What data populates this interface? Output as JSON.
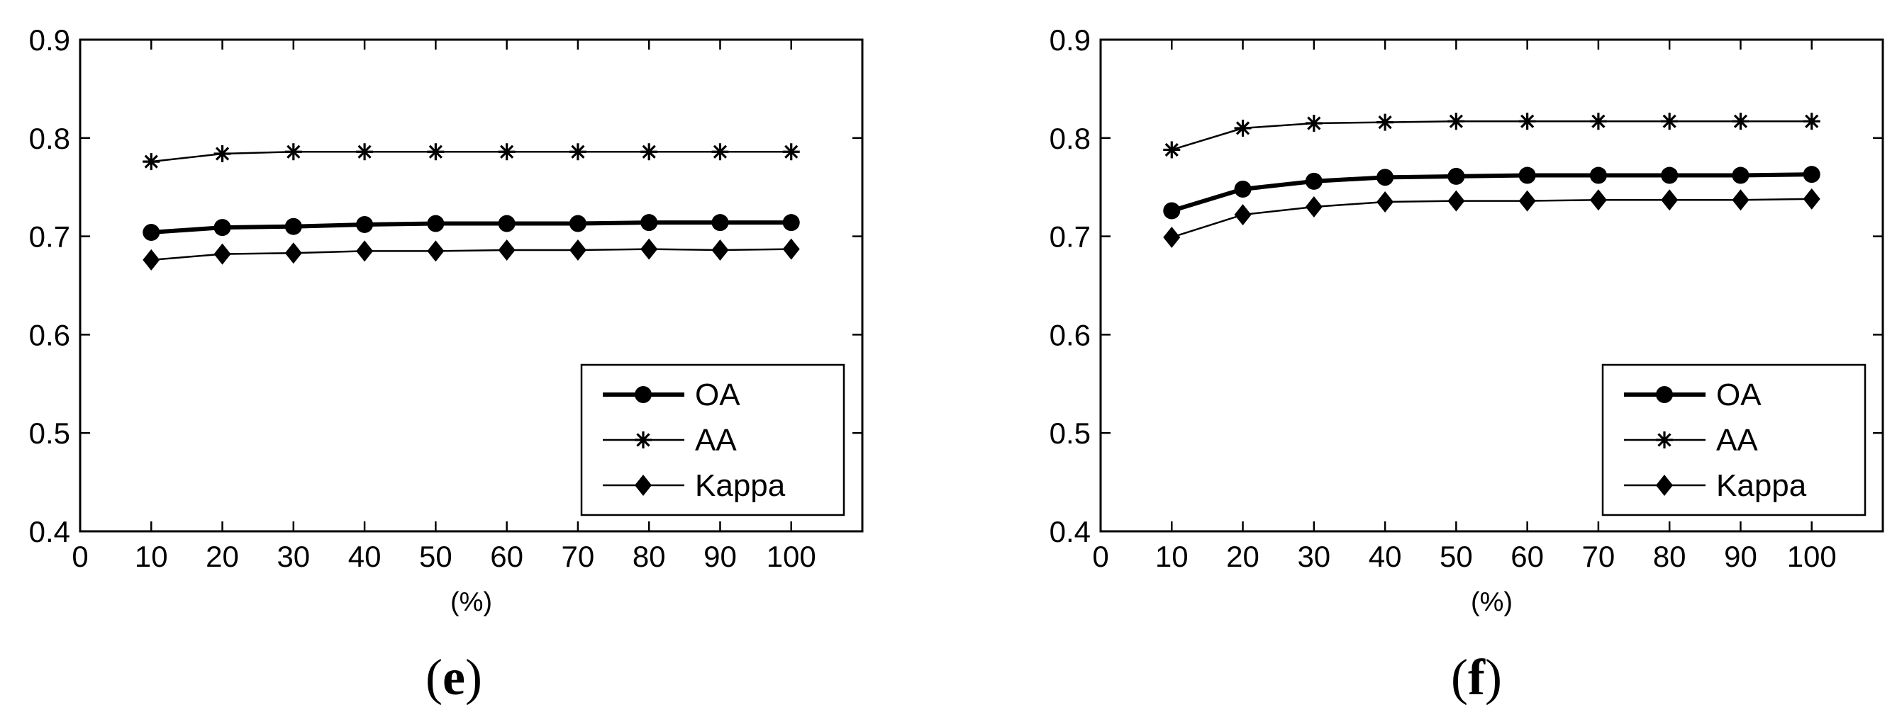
{
  "figure": {
    "captions": [
      {
        "open": "(",
        "letter": "e",
        "close": ")"
      },
      {
        "open": "(",
        "letter": "f",
        "close": ")"
      }
    ]
  },
  "chart_data": [
    {
      "type": "line",
      "title": "",
      "xlabel": "(%)",
      "ylabel": "",
      "xlim": [
        0,
        110
      ],
      "ylim": [
        0.4,
        0.9
      ],
      "xticks": [
        0,
        10,
        20,
        30,
        40,
        50,
        60,
        70,
        80,
        90,
        100
      ],
      "yticks": [
        0.4,
        0.5,
        0.6,
        0.7,
        0.8,
        0.9
      ],
      "xtick_labels": [
        "0",
        "10",
        "20",
        "30",
        "40",
        "50",
        "60",
        "70",
        "80",
        "90",
        "100"
      ],
      "ytick_labels": [
        "0.4",
        "0.5",
        "0.6",
        "0.7",
        "0.8",
        "0.9"
      ],
      "grid": false,
      "legend_position": "bottom-right",
      "x": [
        10,
        20,
        30,
        40,
        50,
        60,
        70,
        80,
        90,
        100
      ],
      "series": [
        {
          "name": "OA",
          "marker": "circle",
          "line": "thick",
          "values": [
            0.704,
            0.709,
            0.71,
            0.712,
            0.713,
            0.713,
            0.713,
            0.714,
            0.714,
            0.714
          ]
        },
        {
          "name": "AA",
          "marker": "asterisk",
          "line": "thin",
          "values": [
            0.776,
            0.784,
            0.786,
            0.786,
            0.786,
            0.786,
            0.786,
            0.786,
            0.786,
            0.786
          ]
        },
        {
          "name": "Kappa",
          "marker": "diamond",
          "line": "thin",
          "values": [
            0.676,
            0.682,
            0.683,
            0.685,
            0.685,
            0.686,
            0.686,
            0.687,
            0.686,
            0.687
          ]
        }
      ]
    },
    {
      "type": "line",
      "title": "",
      "xlabel": "(%)",
      "ylabel": "",
      "xlim": [
        0,
        110
      ],
      "ylim": [
        0.4,
        0.9
      ],
      "xticks": [
        0,
        10,
        20,
        30,
        40,
        50,
        60,
        70,
        80,
        90,
        100
      ],
      "yticks": [
        0.4,
        0.5,
        0.6,
        0.7,
        0.8,
        0.9
      ],
      "xtick_labels": [
        "0",
        "10",
        "20",
        "30",
        "40",
        "50",
        "60",
        "70",
        "80",
        "90",
        "100"
      ],
      "ytick_labels": [
        "0.4",
        "0.5",
        "0.6",
        "0.7",
        "0.8",
        "0.9"
      ],
      "grid": false,
      "legend_position": "bottom-right",
      "x": [
        10,
        20,
        30,
        40,
        50,
        60,
        70,
        80,
        90,
        100
      ],
      "series": [
        {
          "name": "OA",
          "marker": "circle",
          "line": "thick",
          "values": [
            0.726,
            0.748,
            0.756,
            0.76,
            0.761,
            0.762,
            0.762,
            0.762,
            0.762,
            0.763
          ]
        },
        {
          "name": "AA",
          "marker": "asterisk",
          "line": "thin",
          "values": [
            0.788,
            0.81,
            0.815,
            0.816,
            0.817,
            0.817,
            0.817,
            0.817,
            0.817,
            0.817
          ]
        },
        {
          "name": "Kappa",
          "marker": "diamond",
          "line": "thin",
          "values": [
            0.699,
            0.722,
            0.73,
            0.735,
            0.736,
            0.736,
            0.737,
            0.737,
            0.737,
            0.738
          ]
        }
      ]
    }
  ]
}
